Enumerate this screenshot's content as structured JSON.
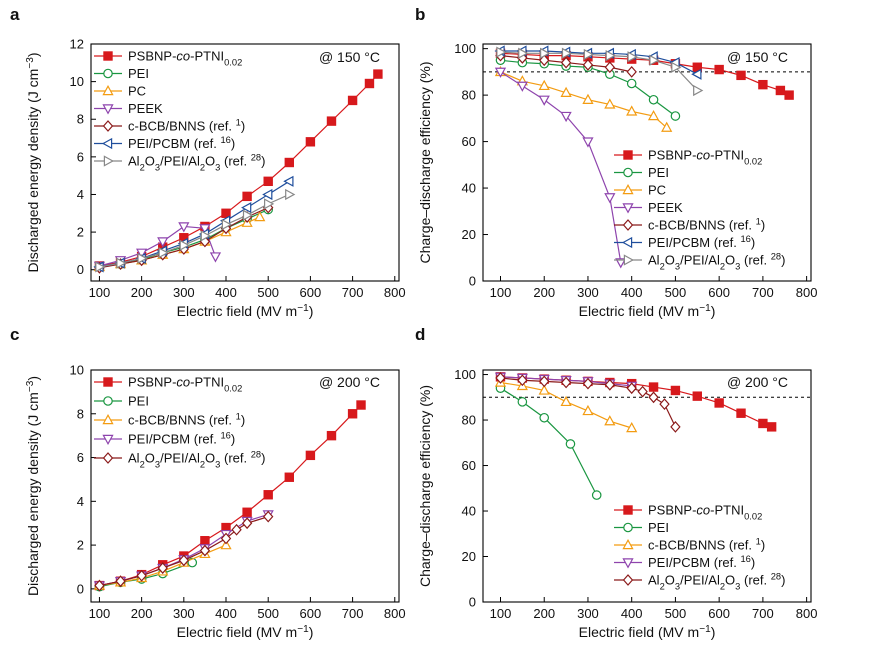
{
  "chart_data": [
    {
      "panel_label": "a",
      "type": "line",
      "annotation": "@ 150 °C",
      "xlabel": "Electric field (MV m⁻¹)",
      "ylabel": "Discharged energy density (J cm⁻³)",
      "xlim": [
        80,
        810
      ],
      "ylim": [
        -0.6,
        12
      ],
      "xticks": [
        100,
        200,
        300,
        400,
        500,
        600,
        700,
        800
      ],
      "yticks": [
        0,
        2,
        4,
        6,
        8,
        10,
        12
      ],
      "legend_position": "upper-left",
      "series": [
        {
          "name": "PSBNP-co-PTNI0.02",
          "color": "#d7191c",
          "marker": "square-filled",
          "x": [
            100,
            150,
            200,
            250,
            300,
            350,
            400,
            450,
            500,
            550,
            600,
            650,
            700,
            740,
            760
          ],
          "y": [
            0.2,
            0.4,
            0.7,
            1.2,
            1.7,
            2.3,
            3.0,
            3.9,
            4.7,
            5.7,
            6.8,
            7.9,
            9.0,
            9.9,
            10.4
          ]
        },
        {
          "name": "PEI",
          "color": "#1a9641",
          "marker": "circle-open",
          "x": [
            100,
            150,
            200,
            250,
            300,
            350,
            400,
            450,
            500
          ],
          "y": [
            0.15,
            0.3,
            0.55,
            0.9,
            1.2,
            1.6,
            2.2,
            2.7,
            3.2
          ]
        },
        {
          "name": "PC",
          "color": "#f39c12",
          "marker": "triangle-up-open",
          "x": [
            100,
            150,
            200,
            250,
            300,
            350,
            400,
            450,
            480
          ],
          "y": [
            0.15,
            0.3,
            0.5,
            0.8,
            1.1,
            1.5,
            2.0,
            2.5,
            2.8
          ]
        },
        {
          "name": "PEEK",
          "color": "#8e44ad",
          "marker": "triangle-down-open",
          "x": [
            100,
            150,
            200,
            250,
            300,
            350,
            375
          ],
          "y": [
            0.2,
            0.5,
            0.9,
            1.5,
            2.3,
            2.2,
            0.7
          ]
        },
        {
          "name": "c-BCB/BNNS (ref. 1)",
          "color": "#8b1a1a",
          "marker": "diamond-open",
          "x": [
            100,
            150,
            200,
            250,
            300,
            350,
            400,
            450,
            500
          ],
          "y": [
            0.1,
            0.3,
            0.5,
            0.8,
            1.1,
            1.5,
            2.2,
            2.8,
            3.3
          ]
        },
        {
          "name": "PEI/PCBM (ref. 16)",
          "color": "#1f4e9c",
          "marker": "triangle-left-open",
          "x": [
            100,
            150,
            200,
            250,
            300,
            350,
            400,
            450,
            500,
            550
          ],
          "y": [
            0.15,
            0.35,
            0.6,
            1.0,
            1.4,
            1.9,
            2.6,
            3.3,
            4.0,
            4.7
          ]
        },
        {
          "name": "Al2O3/PEI/Al2O3 (ref. 28)",
          "color": "#888888",
          "marker": "triangle-right-open",
          "x": [
            100,
            150,
            200,
            250,
            300,
            350,
            400,
            450,
            500,
            550
          ],
          "y": [
            0.15,
            0.35,
            0.6,
            0.9,
            1.3,
            1.8,
            2.4,
            2.9,
            3.5,
            4.0
          ]
        }
      ]
    },
    {
      "panel_label": "b",
      "type": "line",
      "annotation": "@ 150 °C",
      "xlabel": "Electric field (MV m⁻¹)",
      "ylabel": "Charge–discharge efficiency (%)",
      "xlim": [
        60,
        810
      ],
      "ylim": [
        0,
        102
      ],
      "xticks": [
        100,
        200,
        300,
        400,
        500,
        600,
        700,
        800
      ],
      "yticks": [
        0,
        20,
        40,
        60,
        80,
        100
      ],
      "reference_line_y": 90,
      "legend_position": "lower-right",
      "series": [
        {
          "name": "PSBNP-co-PTNI0.02",
          "color": "#d7191c",
          "marker": "square-filled",
          "x": [
            100,
            150,
            200,
            250,
            300,
            350,
            400,
            450,
            500,
            550,
            600,
            650,
            700,
            740,
            760
          ],
          "y": [
            98,
            97.5,
            97,
            97,
            96.5,
            96,
            95.5,
            95,
            93.5,
            92,
            91,
            88.5,
            84.5,
            82,
            80
          ]
        },
        {
          "name": "PEI",
          "color": "#1a9641",
          "marker": "circle-open",
          "x": [
            100,
            150,
            200,
            250,
            300,
            350,
            400,
            450,
            500
          ],
          "y": [
            95,
            94,
            93.5,
            92.5,
            92,
            89,
            85,
            78,
            71
          ]
        },
        {
          "name": "PC",
          "color": "#f39c12",
          "marker": "triangle-up-open",
          "x": [
            100,
            150,
            200,
            250,
            300,
            350,
            400,
            450,
            480
          ],
          "y": [
            90,
            86,
            84,
            81,
            78,
            76,
            73,
            71,
            66
          ]
        },
        {
          "name": "PEEK",
          "color": "#8e44ad",
          "marker": "triangle-down-open",
          "x": [
            100,
            150,
            200,
            250,
            300,
            350,
            375
          ],
          "y": [
            90,
            84,
            78,
            71,
            60,
            36,
            8
          ]
        },
        {
          "name": "c-BCB/BNNS (ref. 1)",
          "color": "#8b1a1a",
          "marker": "diamond-open",
          "x": [
            100,
            150,
            200,
            250,
            300,
            350,
            400
          ],
          "y": [
            97,
            96,
            95,
            94,
            93,
            92,
            90
          ]
        },
        {
          "name": "PEI/PCBM (ref. 16)",
          "color": "#1f4e9c",
          "marker": "triangle-left-open",
          "x": [
            100,
            150,
            200,
            250,
            300,
            350,
            400,
            450,
            500,
            550
          ],
          "y": [
            99,
            99,
            99,
            98.5,
            98,
            98,
            97.5,
            96.5,
            94,
            89
          ]
        },
        {
          "name": "Al2O3/PEI/Al2O3 (ref. 28)",
          "color": "#888888",
          "marker": "triangle-right-open",
          "x": [
            100,
            150,
            200,
            250,
            300,
            350,
            400,
            450,
            500,
            550
          ],
          "y": [
            98.5,
            98,
            98,
            98,
            97.5,
            97,
            96.5,
            95,
            92,
            82
          ]
        }
      ]
    },
    {
      "panel_label": "c",
      "type": "line",
      "annotation": "@ 200 °C",
      "xlabel": "Electric field (MV m⁻¹)",
      "ylabel": "Discharged energy density (J cm⁻³)",
      "xlim": [
        80,
        810
      ],
      "ylim": [
        -0.6,
        10
      ],
      "xticks": [
        100,
        200,
        300,
        400,
        500,
        600,
        700,
        800
      ],
      "yticks": [
        0,
        2,
        4,
        6,
        8,
        10
      ],
      "legend_position": "upper-left",
      "series": [
        {
          "name": "PSBNP-co-PTNI0.02",
          "color": "#d7191c",
          "marker": "square-filled",
          "x": [
            100,
            150,
            200,
            250,
            300,
            350,
            400,
            450,
            500,
            550,
            600,
            650,
            700,
            720
          ],
          "y": [
            0.15,
            0.35,
            0.65,
            1.1,
            1.5,
            2.2,
            2.8,
            3.5,
            4.3,
            5.1,
            6.1,
            7.0,
            8.0,
            8.4
          ]
        },
        {
          "name": "PEI",
          "color": "#1a9641",
          "marker": "circle-open",
          "x": [
            100,
            150,
            200,
            250,
            320
          ],
          "y": [
            0.1,
            0.3,
            0.45,
            0.7,
            1.2
          ]
        },
        {
          "name": "c-BCB/BNNS (ref. 1)",
          "color": "#f39c12",
          "marker": "triangle-up-open",
          "x": [
            100,
            150,
            200,
            250,
            300,
            350,
            400
          ],
          "y": [
            0.15,
            0.3,
            0.5,
            0.8,
            1.2,
            1.6,
            2.0
          ]
        },
        {
          "name": "PEI/PCBM (ref. 16)",
          "color": "#8e44ad",
          "marker": "triangle-down-open",
          "x": [
            100,
            150,
            200,
            250,
            300,
            350,
            400,
            450,
            500
          ],
          "y": [
            0.15,
            0.35,
            0.6,
            0.95,
            1.35,
            1.85,
            2.5,
            3.1,
            3.4
          ]
        },
        {
          "name": "Al2O3/PEI/Al2O3 (ref. 28)",
          "color": "#8b1a1a",
          "marker": "diamond-open",
          "x": [
            100,
            150,
            200,
            250,
            300,
            350,
            400,
            425,
            450,
            500
          ],
          "y": [
            0.15,
            0.35,
            0.6,
            0.95,
            1.3,
            1.75,
            2.3,
            2.7,
            3.0,
            3.3
          ]
        }
      ]
    },
    {
      "panel_label": "d",
      "type": "line",
      "annotation": "@ 200 °C",
      "xlabel": "Electric field (MV m⁻¹)",
      "ylabel": "Charge–discharge efficiency (%)",
      "xlim": [
        60,
        810
      ],
      "ylim": [
        0,
        102
      ],
      "xticks": [
        100,
        200,
        300,
        400,
        500,
        600,
        700,
        800
      ],
      "yticks": [
        0,
        20,
        40,
        60,
        80,
        100
      ],
      "reference_line_y": 90,
      "legend_position": "lower-right",
      "series": [
        {
          "name": "PSBNP-co-PTNI0.02",
          "color": "#d7191c",
          "marker": "square-filled",
          "x": [
            100,
            150,
            200,
            250,
            300,
            350,
            400,
            450,
            500,
            550,
            600,
            650,
            700,
            720
          ],
          "y": [
            99,
            98.5,
            98,
            97.5,
            97,
            96.5,
            96,
            94.5,
            93,
            90.5,
            87.5,
            83,
            78.5,
            77
          ]
        },
        {
          "name": "PEI",
          "color": "#1a9641",
          "marker": "circle-open",
          "x": [
            100,
            150,
            200,
            260,
            320
          ],
          "y": [
            94,
            88,
            81,
            69.5,
            47
          ]
        },
        {
          "name": "c-BCB/BNNS (ref. 1)",
          "color": "#f39c12",
          "marker": "triangle-up-open",
          "x": [
            100,
            150,
            200,
            250,
            300,
            350,
            400
          ],
          "y": [
            96.5,
            95,
            93,
            88,
            84,
            79.5,
            76.5
          ]
        },
        {
          "name": "PEI/PCBM (ref. 16)",
          "color": "#8e44ad",
          "marker": "triangle-down-open",
          "x": [
            100,
            150,
            200,
            250,
            300,
            350,
            400
          ],
          "y": [
            99,
            98.5,
            98,
            97.5,
            97,
            96,
            95
          ]
        },
        {
          "name": "Al2O3/PEI/Al2O3 (ref. 28)",
          "color": "#8b1a1a",
          "marker": "diamond-open",
          "x": [
            100,
            150,
            200,
            250,
            300,
            350,
            400,
            425,
            450,
            475,
            500
          ],
          "y": [
            98.5,
            97.5,
            97,
            96.5,
            96,
            95.5,
            94,
            92.5,
            90,
            87,
            77
          ]
        }
      ]
    }
  ],
  "legend_labels": {
    "PSBNP-co-PTNI0.02": [
      [
        "PSBNP-",
        ""
      ],
      [
        "co",
        "i"
      ],
      [
        "-PTNI",
        ""
      ],
      [
        "0.02",
        "sub"
      ]
    ],
    "PEI": [
      [
        "PEI",
        ""
      ]
    ],
    "PC": [
      [
        "PC",
        ""
      ]
    ],
    "PEEK": [
      [
        "PEEK",
        ""
      ]
    ],
    "c-BCB/BNNS (ref. 1)": [
      [
        "c-BCB/BNNS (ref. ",
        ""
      ],
      [
        "1",
        "sup"
      ],
      [
        ")",
        ""
      ]
    ],
    "PEI/PCBM (ref. 16)": [
      [
        "PEI/PCBM (ref. ",
        ""
      ],
      [
        "16",
        "sup"
      ],
      [
        ")",
        ""
      ]
    ],
    "Al2O3/PEI/Al2O3 (ref. 28)": [
      [
        "Al",
        ""
      ],
      [
        "2",
        "sub"
      ],
      [
        "O",
        ""
      ],
      [
        "3",
        "sub"
      ],
      [
        "/PEI/Al",
        ""
      ],
      [
        "2",
        "sub"
      ],
      [
        "O",
        ""
      ],
      [
        "3",
        "sub"
      ],
      [
        " (ref. ",
        ""
      ],
      [
        "28",
        "sup"
      ],
      [
        ")",
        ""
      ]
    ]
  }
}
